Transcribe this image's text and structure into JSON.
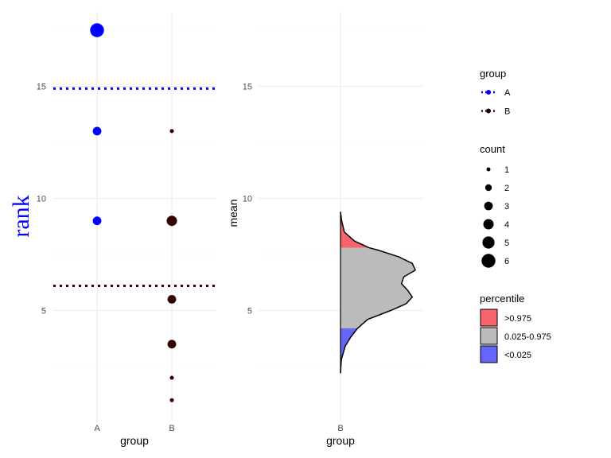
{
  "chart_data": [
    {
      "type": "scatter",
      "panel": "left",
      "xlabel": "group",
      "ylabel": "rank",
      "ylabel_color": "#0000ff",
      "categories": [
        "A",
        "B"
      ],
      "ylim": [
        0,
        18.5
      ],
      "yticks": [
        5,
        10,
        15
      ],
      "grid": true,
      "series": [
        {
          "name": "A",
          "color": "#0000ff",
          "points": [
            {
              "x": "A",
              "y": 17.5,
              "count": 6
            },
            {
              "x": "A",
              "y": 13,
              "count": 3
            },
            {
              "x": "A",
              "y": 9,
              "count": 3
            }
          ],
          "mean_line": 14.9,
          "mean_line_style": "dotted"
        },
        {
          "name": "B",
          "color": "#330000",
          "points": [
            {
              "x": "B",
              "y": 13,
              "count": 1
            },
            {
              "x": "B",
              "y": 9,
              "count": 4
            },
            {
              "x": "B",
              "y": 5.5,
              "count": 3
            },
            {
              "x": "B",
              "y": 3.5,
              "count": 3
            },
            {
              "x": "B",
              "y": 2,
              "count": 1
            },
            {
              "x": "B",
              "y": 1,
              "count": 1
            }
          ],
          "mean_line": 6.1,
          "mean_line_style": "dotted"
        }
      ]
    },
    {
      "type": "area",
      "panel": "right",
      "subtype": "density",
      "xlabel": "group",
      "ylabel": "mean",
      "categories": [
        "B"
      ],
      "ylim": [
        0,
        18.5
      ],
      "yticks": [
        5,
        10,
        15
      ],
      "grid": true,
      "density": {
        "y": [
          2.2,
          2.8,
          3.4,
          3.8,
          4.2,
          4.6,
          5.0,
          5.3,
          5.6,
          5.9,
          6.2,
          6.5,
          6.8,
          7.1,
          7.4,
          7.7,
          7.8,
          8.1,
          8.5,
          9.0,
          9.4
        ],
        "width": [
          0.0,
          0.01,
          0.06,
          0.13,
          0.22,
          0.35,
          0.65,
          0.85,
          0.93,
          0.87,
          0.79,
          0.82,
          0.97,
          0.93,
          0.75,
          0.48,
          0.37,
          0.18,
          0.05,
          0.015,
          0.0
        ]
      },
      "percentile_bands": [
        {
          "label": ">0.975",
          "from": 7.8,
          "to": 9.4,
          "color": "#f8646b"
        },
        {
          "label": "0.025-0.975",
          "from": 4.2,
          "to": 7.8,
          "color": "#bbbbbb"
        },
        {
          "label": "<0.025",
          "from": 2.2,
          "to": 4.2,
          "color": "#6565f9"
        }
      ]
    }
  ],
  "legend": {
    "placement": "right",
    "group": {
      "title": "group",
      "items": [
        {
          "label": "A",
          "color": "#0000ff"
        },
        {
          "label": "B",
          "color": "#330000"
        }
      ]
    },
    "count": {
      "title": "count",
      "items": [
        {
          "label": "1",
          "value": 1
        },
        {
          "label": "2",
          "value": 2
        },
        {
          "label": "3",
          "value": 3
        },
        {
          "label": "4",
          "value": 4
        },
        {
          "label": "5",
          "value": 5
        },
        {
          "label": "6",
          "value": 6
        }
      ]
    },
    "percentile": {
      "title": "percentile",
      "items": [
        {
          "label": ">0.975",
          "color": "#f8646b"
        },
        {
          "label": "0.025-0.975",
          "color": "#bbbbbb"
        },
        {
          "label": "<0.025",
          "color": "#6565f9"
        }
      ]
    }
  }
}
